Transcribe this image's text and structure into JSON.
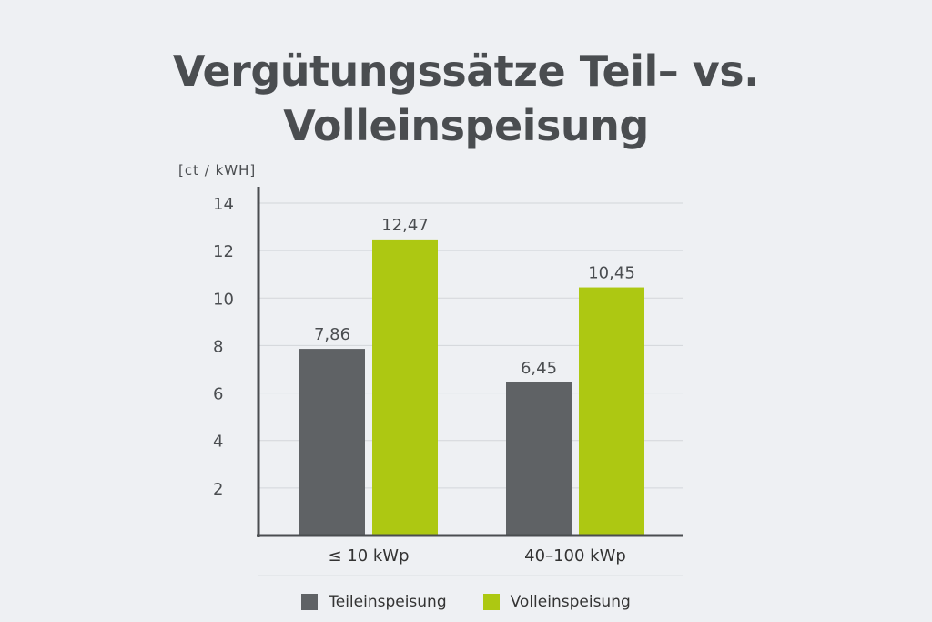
{
  "chart_data": {
    "type": "bar",
    "title_line1": "Vergütungssätze Teil– vs.",
    "title_line2": "Volleinspeisung",
    "unit_label": "[ct / kWH]",
    "categories": [
      "≤ 10 kWp",
      "40–100 kWp"
    ],
    "series": [
      {
        "name": "Teileinspeisung",
        "color": "#5f6265",
        "values": [
          7.86,
          6.45
        ],
        "labels": [
          "7,86",
          "6,45"
        ]
      },
      {
        "name": "Volleinspeisung",
        "color": "#adc812",
        "values": [
          12.47,
          10.45
        ],
        "labels": [
          "12,47",
          "10,45"
        ]
      }
    ],
    "ylim": [
      0,
      14
    ],
    "yticks": [
      2,
      4,
      6,
      8,
      10,
      12,
      14
    ],
    "grid": true,
    "legend_position": "bottom"
  }
}
